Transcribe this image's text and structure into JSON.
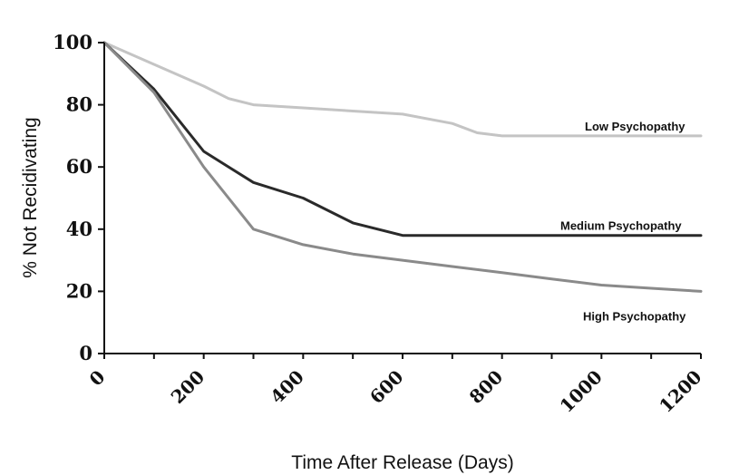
{
  "chart_data": {
    "type": "line",
    "xlabel": "Time After Release (Days)",
    "ylabel": "% Not Recidivating",
    "xlim": [
      0,
      1200
    ],
    "ylim": [
      0,
      100
    ],
    "xticks": [
      "0",
      "200",
      "400",
      "600",
      "800",
      "1000",
      "1200"
    ],
    "yticks": [
      "0",
      "20",
      "40",
      "60",
      "80",
      "100"
    ],
    "grid": false,
    "series": [
      {
        "name": "Low Psychopathy",
        "color": "#c4c4c4",
        "x": [
          0,
          100,
          200,
          250,
          300,
          400,
          500,
          600,
          700,
          750,
          800,
          900,
          1000,
          1100,
          1200
        ],
        "y": [
          100,
          93,
          86,
          82,
          80,
          79,
          78,
          77,
          74,
          71,
          70,
          70,
          70,
          70,
          70
        ]
      },
      {
        "name": "Medium Psychopathy",
        "color": "#2a2a2a",
        "x": [
          0,
          100,
          200,
          300,
          400,
          500,
          600,
          700,
          800,
          900,
          1000,
          1100,
          1200
        ],
        "y": [
          100,
          85,
          65,
          55,
          50,
          42,
          38,
          38,
          38,
          38,
          38,
          38,
          38
        ]
      },
      {
        "name": "High Psychopathy",
        "color": "#8a8a8a",
        "x": [
          0,
          100,
          200,
          300,
          400,
          500,
          600,
          700,
          800,
          900,
          1000,
          1100,
          1200
        ],
        "y": [
          100,
          84,
          60,
          40,
          35,
          32,
          30,
          28,
          26,
          24,
          22,
          21,
          20
        ]
      }
    ]
  }
}
